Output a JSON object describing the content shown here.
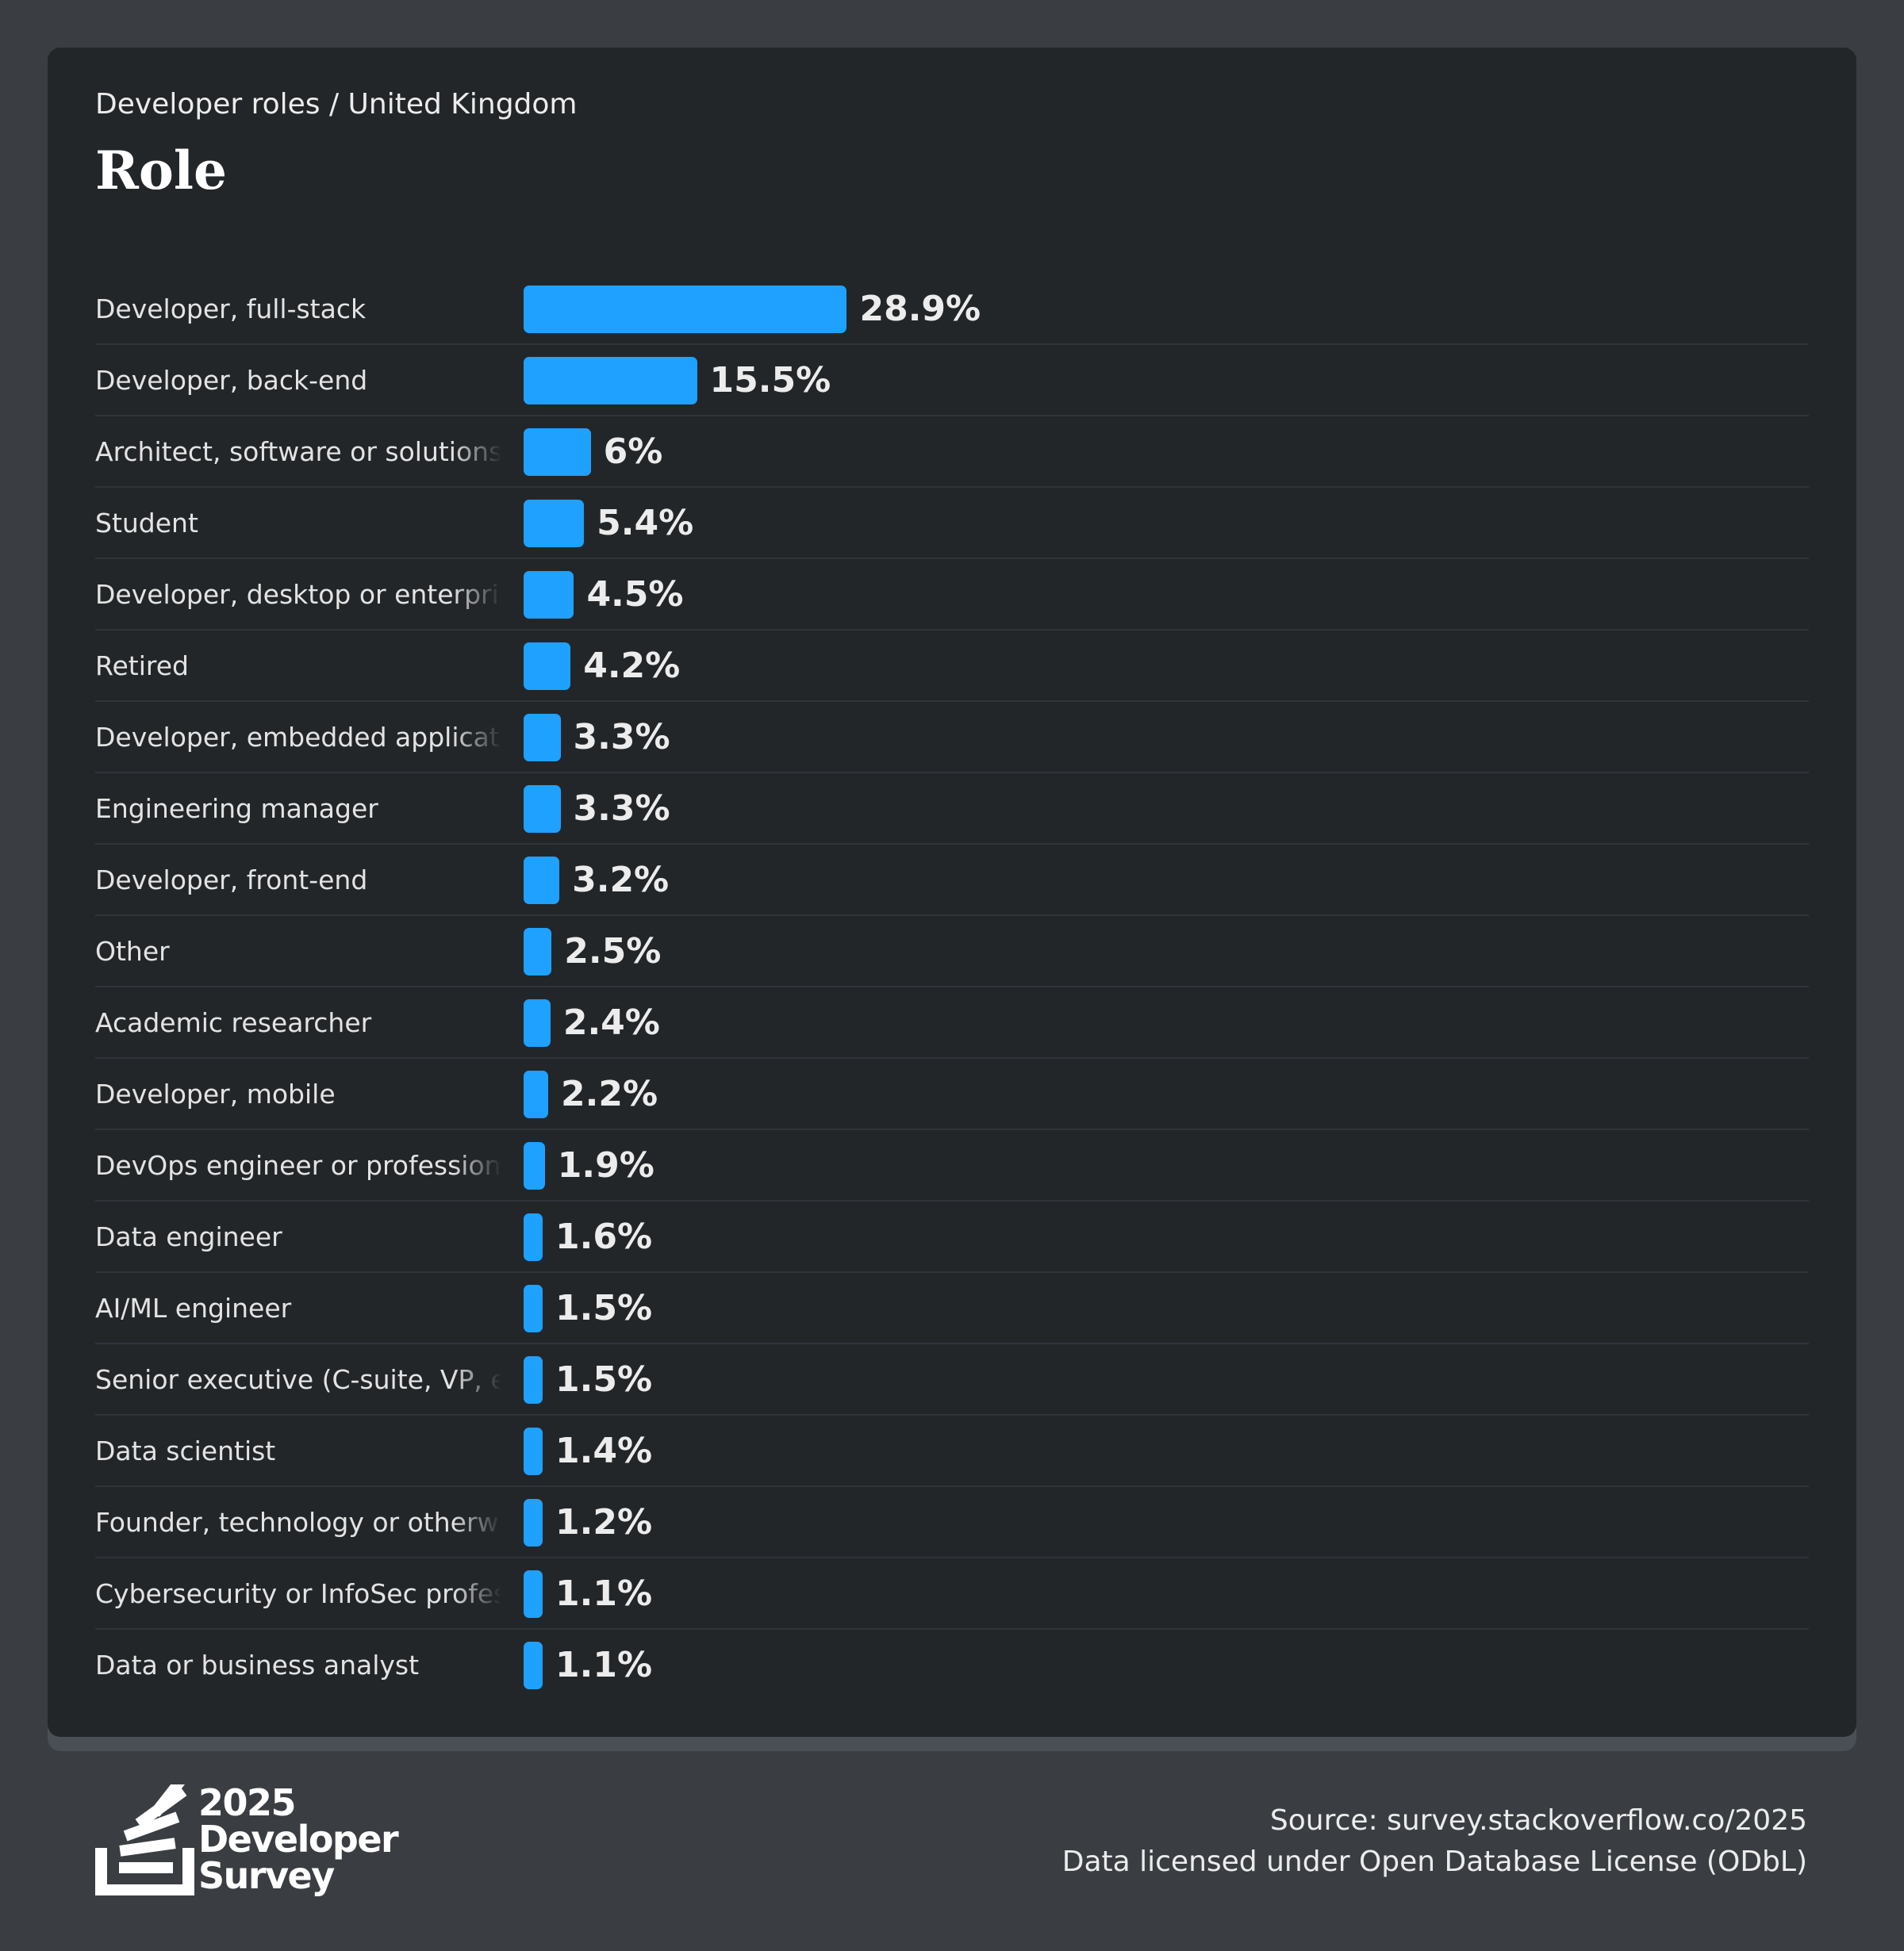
{
  "header": {
    "subtitle": "Developer roles / United Kingdom",
    "title": "Role"
  },
  "colors": {
    "bar": "#1ea1ff",
    "background": "#3a3e43",
    "card": "#232629"
  },
  "chart_data": {
    "type": "bar",
    "orientation": "horizontal",
    "title": "Role",
    "subtitle": "Developer roles / United Kingdom",
    "unit": "%",
    "xlim": [
      0,
      100
    ],
    "grid": false,
    "legend": "none",
    "categories": [
      "Developer, full-stack",
      "Developer, back-end",
      "Architect, software or solutions",
      "Student",
      "Developer, desktop or enterprise applications",
      "Retired",
      "Developer, embedded applications or devices",
      "Engineering manager",
      "Developer, front-end",
      "Other",
      "Academic researcher",
      "Developer, mobile",
      "DevOps engineer or professional",
      "Data engineer",
      "AI/ML engineer",
      "Senior executive (C-suite, VP, etc.)",
      "Data scientist",
      "Founder, technology or otherwise",
      "Cybersecurity or InfoSec professional",
      "Data or business analyst"
    ],
    "values": [
      28.9,
      15.5,
      6,
      5.4,
      4.5,
      4.2,
      3.3,
      3.3,
      3.2,
      2.5,
      2.4,
      2.2,
      1.9,
      1.6,
      1.5,
      1.5,
      1.4,
      1.2,
      1.1,
      1.1
    ],
    "value_labels": [
      "28.9%",
      "15.5%",
      "6%",
      "5.4%",
      "4.5%",
      "4.2%",
      "3.3%",
      "3.3%",
      "3.2%",
      "2.5%",
      "2.4%",
      "2.2%",
      "1.9%",
      "1.6%",
      "1.5%",
      "1.5%",
      "1.4%",
      "1.2%",
      "1.1%",
      "1.1%"
    ]
  },
  "footer": {
    "logo": {
      "icon": "stack-overflow-survey-logo-icon",
      "line1": "2025",
      "line2": "Developer",
      "line3": "Survey"
    },
    "source": "Source: survey.stackoverflow.co/2025",
    "license": "Data licensed under Open Database License (ODbL)"
  }
}
